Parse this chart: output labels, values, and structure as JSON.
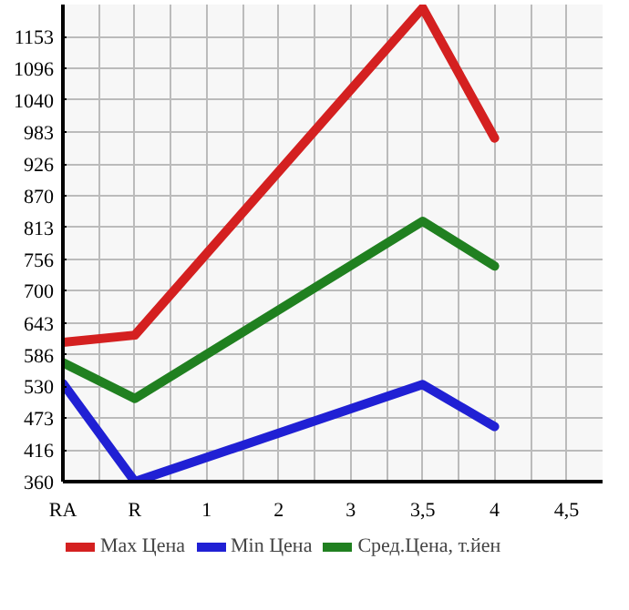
{
  "chart_data": {
    "type": "line",
    "categories": [
      "RA",
      "R",
      "1",
      "2",
      "3",
      "3,5",
      "4",
      "4,5"
    ],
    "series": [
      {
        "name": "Max Цена",
        "color": "#d42020",
        "values": [
          608,
          621,
          null,
          null,
          null,
          1204,
          972,
          null
        ]
      },
      {
        "name": "Min Цена",
        "color": "#2020d4",
        "values": [
          535,
          360,
          null,
          null,
          null,
          533,
          458,
          null
        ]
      },
      {
        "name": "Сред.Цена, т.йен",
        "color": "#208020",
        "values": [
          572,
          508,
          null,
          null,
          null,
          824,
          744,
          null
        ]
      }
    ],
    "ylim": [
      360,
      1210
    ],
    "yticks": [
      360,
      416,
      473,
      530,
      586,
      643,
      700,
      756,
      813,
      870,
      926,
      983,
      1040,
      1096,
      1153
    ],
    "grid": true,
    "legend": "bottom",
    "marker": "none",
    "line_style": "solid"
  }
}
